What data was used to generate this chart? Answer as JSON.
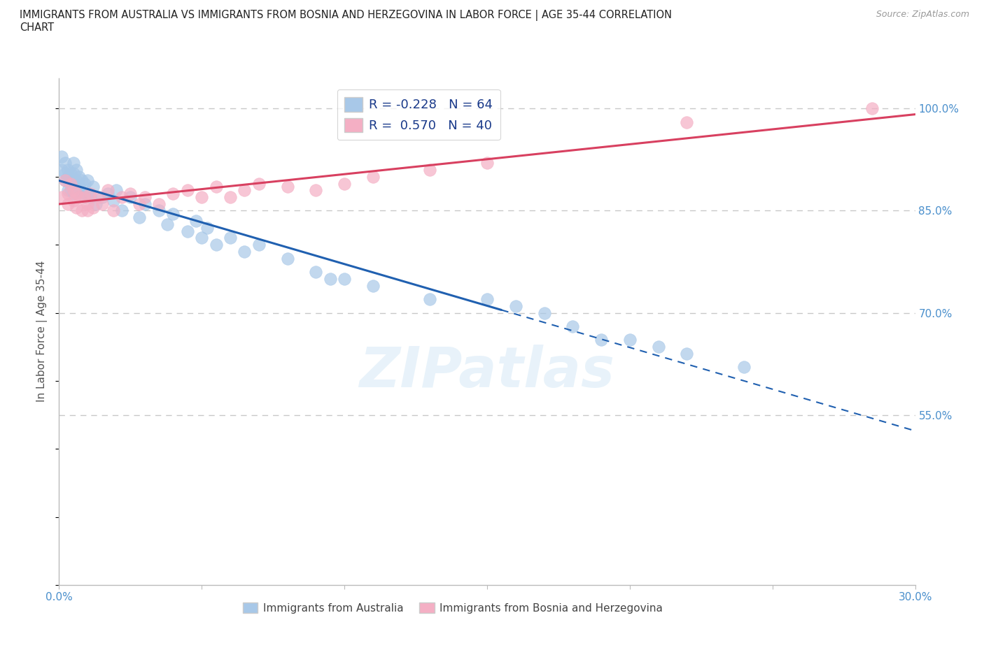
{
  "title_line1": "IMMIGRANTS FROM AUSTRALIA VS IMMIGRANTS FROM BOSNIA AND HERZEGOVINA IN LABOR FORCE | AGE 35-44 CORRELATION",
  "title_line2": "CHART",
  "source": "Source: ZipAtlas.com",
  "ylabel": "In Labor Force | Age 35-44",
  "x_min": 0.0,
  "x_max": 0.3,
  "y_min": 0.3,
  "y_max": 1.045,
  "y_ticks": [
    0.55,
    0.7,
    0.85,
    1.0
  ],
  "y_tick_labels": [
    "55.0%",
    "70.0%",
    "85.0%",
    "100.0%"
  ],
  "x_ticks": [
    0.0,
    0.05,
    0.1,
    0.15,
    0.2,
    0.25,
    0.3
  ],
  "x_tick_labels": [
    "0.0%",
    "",
    "",
    "",
    "",
    "",
    "30.0%"
  ],
  "australia_color": "#a8c8e8",
  "bosnia_color": "#f4afc4",
  "australia_line_color": "#2060b0",
  "bosnia_line_color": "#d84060",
  "background_color": "#ffffff",
  "grid_color": "#c8c8c8",
  "title_color": "#222222",
  "axis_label_color": "#555555",
  "tick_label_color": "#4a8fcc",
  "watermark": "ZIPatlas",
  "legend_label_color": "#1a3a8a",
  "australia_scatter_x": [
    0.001,
    0.001,
    0.002,
    0.002,
    0.002,
    0.003,
    0.003,
    0.003,
    0.003,
    0.004,
    0.004,
    0.004,
    0.005,
    0.005,
    0.005,
    0.005,
    0.006,
    0.006,
    0.006,
    0.007,
    0.007,
    0.008,
    0.008,
    0.009,
    0.009,
    0.01,
    0.01,
    0.011,
    0.012,
    0.013,
    0.015,
    0.017,
    0.019,
    0.02,
    0.022,
    0.025,
    0.028,
    0.03,
    0.035,
    0.038,
    0.04,
    0.045,
    0.048,
    0.05,
    0.052,
    0.055,
    0.06,
    0.065,
    0.07,
    0.08,
    0.09,
    0.095,
    0.1,
    0.11,
    0.13,
    0.15,
    0.16,
    0.17,
    0.18,
    0.19,
    0.2,
    0.21,
    0.22,
    0.24
  ],
  "australia_scatter_y": [
    0.93,
    0.91,
    0.92,
    0.905,
    0.895,
    0.9,
    0.91,
    0.895,
    0.88,
    0.905,
    0.89,
    0.88,
    0.92,
    0.905,
    0.895,
    0.875,
    0.91,
    0.895,
    0.88,
    0.9,
    0.885,
    0.895,
    0.875,
    0.89,
    0.87,
    0.895,
    0.875,
    0.87,
    0.885,
    0.86,
    0.87,
    0.875,
    0.865,
    0.88,
    0.85,
    0.87,
    0.84,
    0.86,
    0.85,
    0.83,
    0.845,
    0.82,
    0.835,
    0.81,
    0.825,
    0.8,
    0.81,
    0.79,
    0.8,
    0.78,
    0.76,
    0.75,
    0.75,
    0.74,
    0.72,
    0.72,
    0.71,
    0.7,
    0.68,
    0.66,
    0.66,
    0.65,
    0.64,
    0.62
  ],
  "bosnia_scatter_x": [
    0.001,
    0.002,
    0.003,
    0.003,
    0.004,
    0.005,
    0.005,
    0.006,
    0.006,
    0.007,
    0.008,
    0.009,
    0.01,
    0.01,
    0.011,
    0.012,
    0.014,
    0.015,
    0.017,
    0.019,
    0.022,
    0.025,
    0.028,
    0.03,
    0.035,
    0.04,
    0.045,
    0.05,
    0.055,
    0.06,
    0.065,
    0.07,
    0.08,
    0.09,
    0.1,
    0.11,
    0.13,
    0.15,
    0.22,
    0.285
  ],
  "bosnia_scatter_y": [
    0.87,
    0.895,
    0.875,
    0.86,
    0.89,
    0.88,
    0.865,
    0.875,
    0.855,
    0.87,
    0.85,
    0.87,
    0.86,
    0.85,
    0.875,
    0.855,
    0.87,
    0.86,
    0.88,
    0.85,
    0.87,
    0.875,
    0.86,
    0.87,
    0.86,
    0.875,
    0.88,
    0.87,
    0.885,
    0.87,
    0.88,
    0.89,
    0.885,
    0.88,
    0.89,
    0.9,
    0.91,
    0.92,
    0.98,
    1.0
  ],
  "aus_line_solid_end": 0.155,
  "aus_line_dashed_start": 0.155,
  "bos_line_start": 0.0,
  "bos_line_end": 0.3
}
